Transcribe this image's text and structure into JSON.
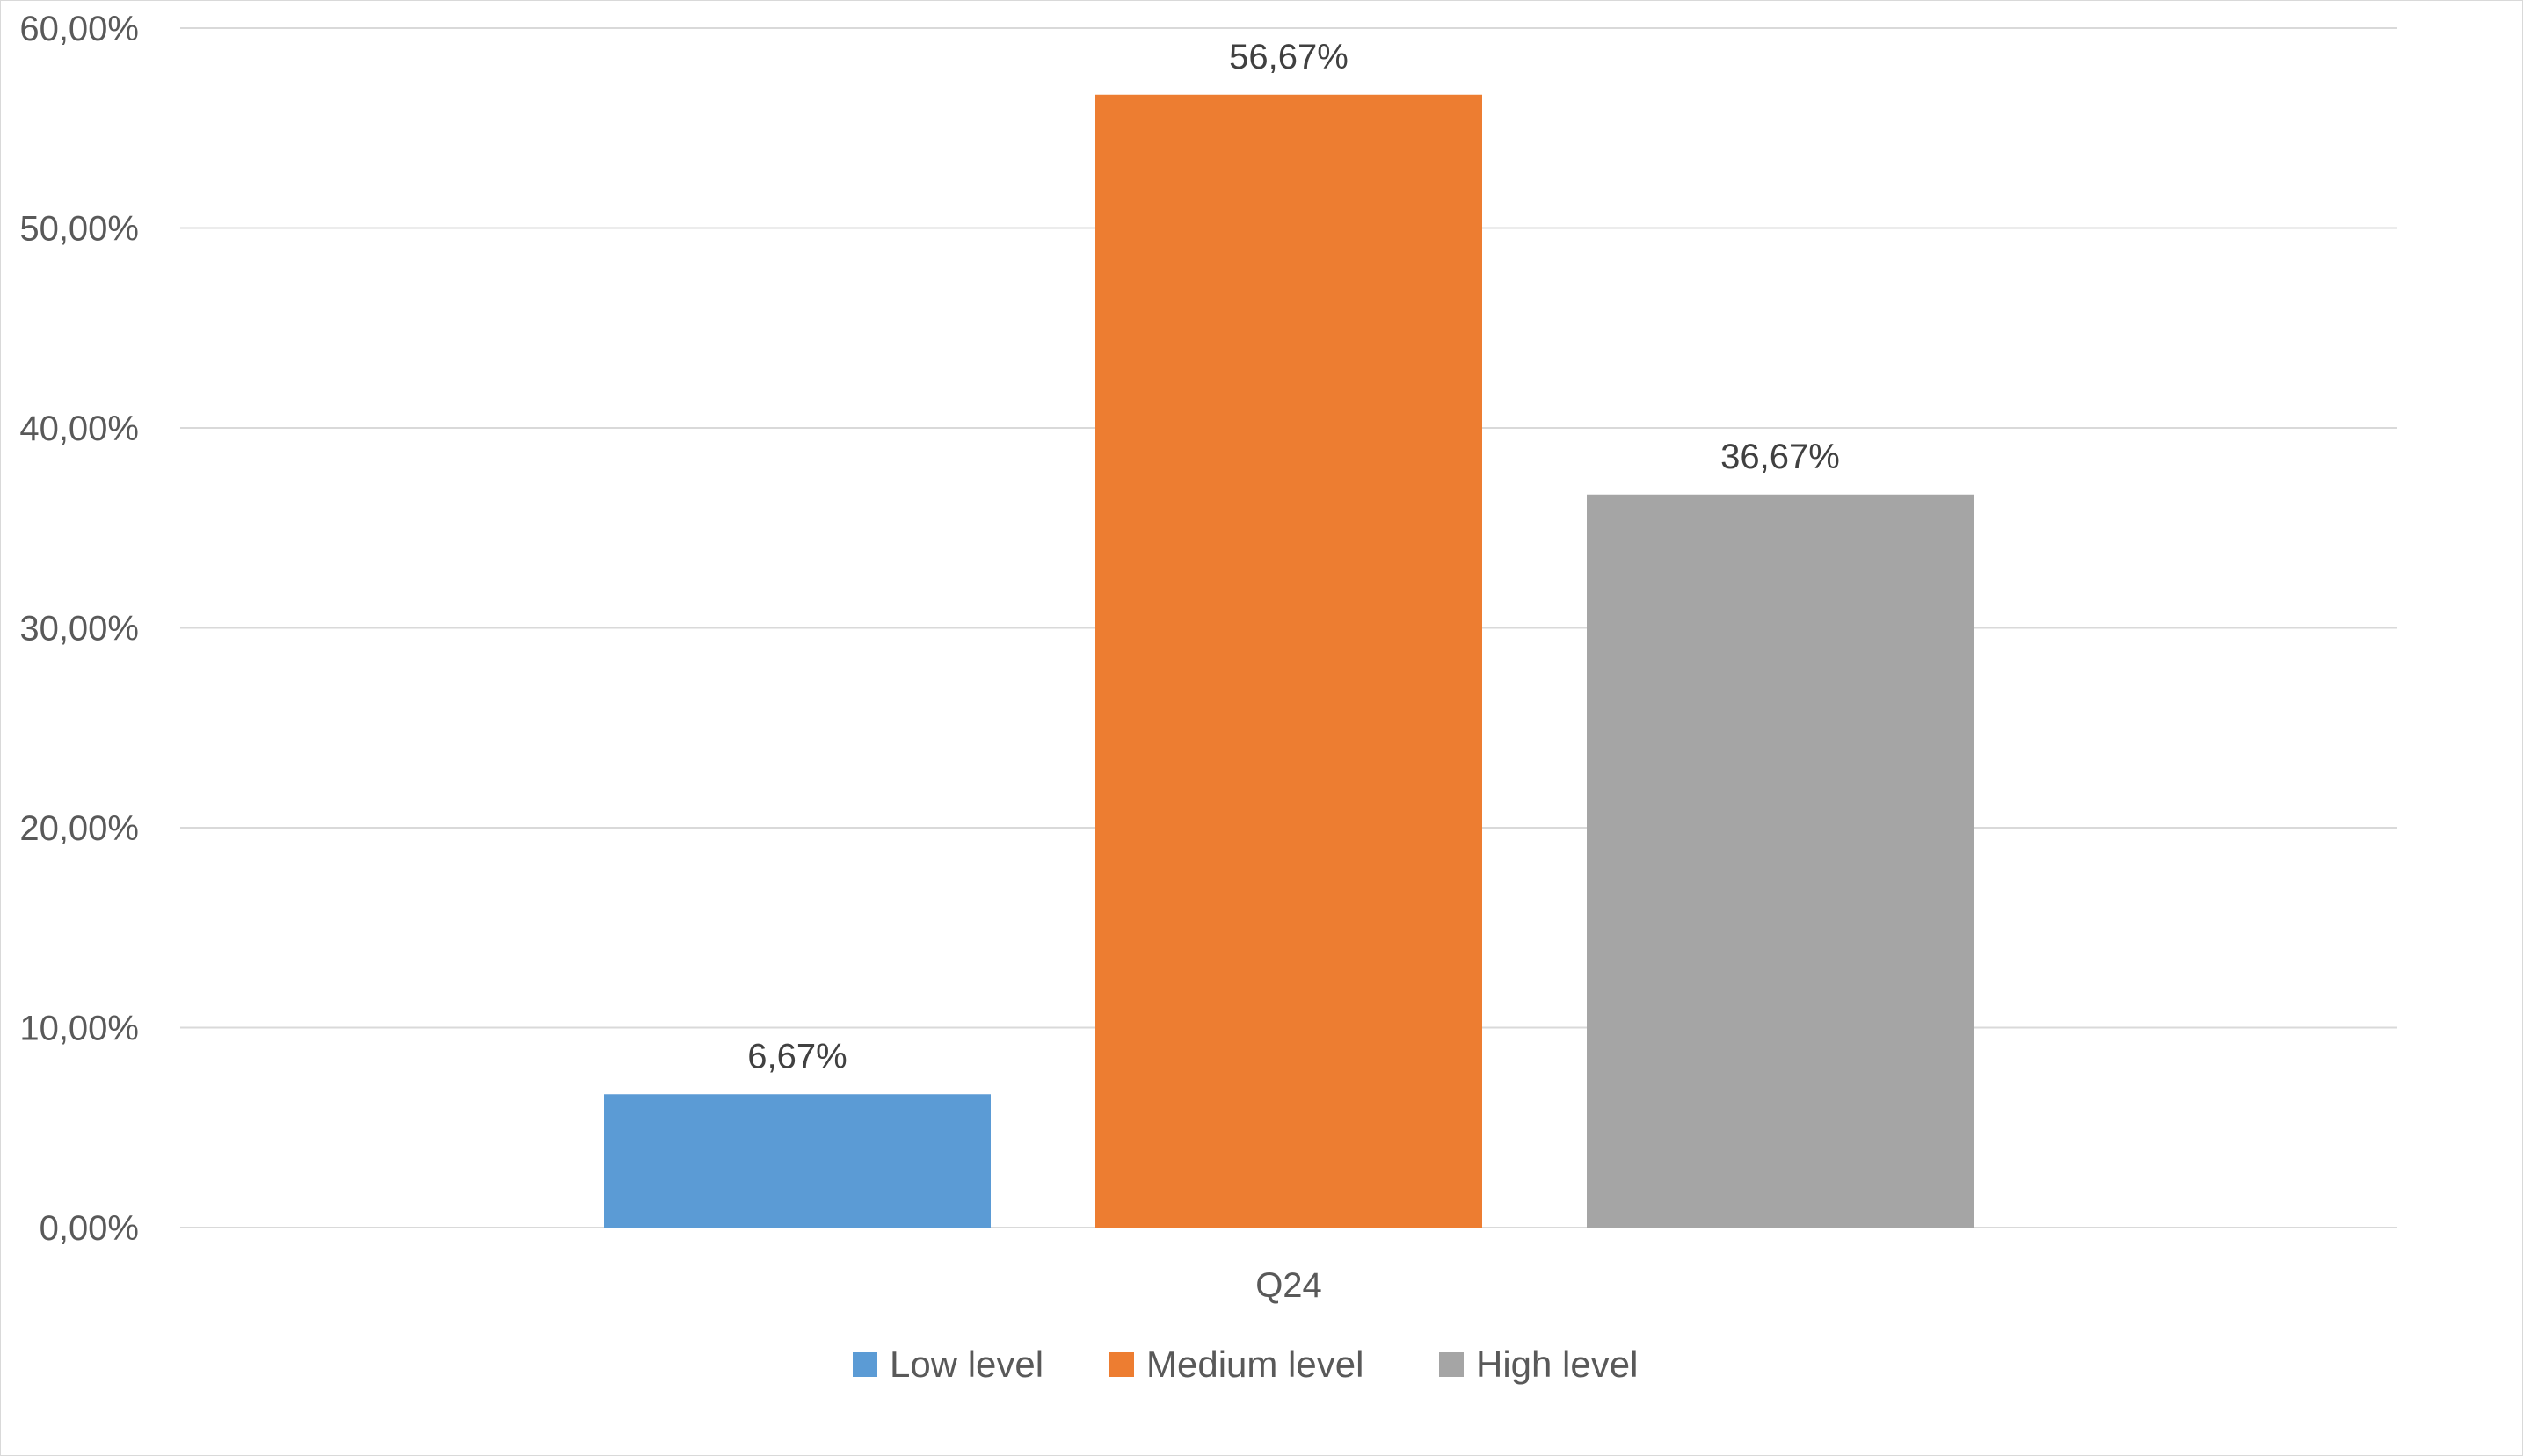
{
  "chart_data": {
    "type": "bar",
    "categories": [
      "Q24"
    ],
    "series": [
      {
        "name": "Low level",
        "values": [
          6.67
        ],
        "label": "6,67%",
        "color": "#5b9bd5"
      },
      {
        "name": "Medium level",
        "values": [
          56.67
        ],
        "label": "56,67%",
        "color": "#ed7d31"
      },
      {
        "name": "High level",
        "values": [
          36.67
        ],
        "label": "36,67%",
        "color": "#a5a5a5"
      }
    ],
    "title": "",
    "xlabel": "",
    "ylabel": "",
    "ylim": [
      0,
      60
    ],
    "yticks": [
      0,
      10,
      20,
      30,
      40,
      50,
      60
    ],
    "ytick_labels": [
      "0,00%",
      "10,00%",
      "20,00%",
      "30,00%",
      "40,00%",
      "50,00%",
      "60,00%"
    ],
    "grid": true,
    "legend_position": "bottom"
  }
}
